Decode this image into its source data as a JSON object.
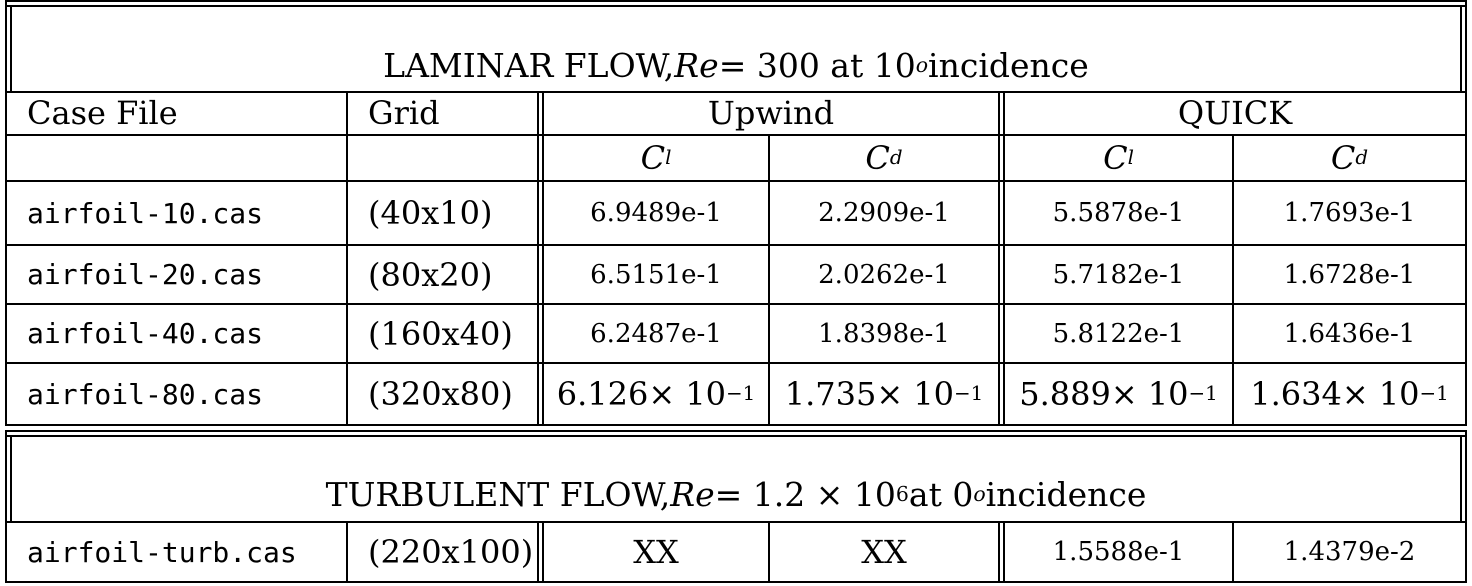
{
  "laminar": {
    "title_prefix": "LAMINAR FLOW, ",
    "re_symbol": "Re",
    "title_eq": " = 300 at 10",
    "title_sup": "o",
    "title_suffix": " incidence",
    "headers": {
      "case_file": "Case File",
      "grid": "Grid",
      "upwind": "Upwind",
      "quick": "QUICK"
    },
    "coef": {
      "cl_main": "C",
      "cl_sub": "l",
      "cd_main": "C",
      "cd_sub": "d"
    },
    "rows": [
      {
        "file": "airfoil-10.cas",
        "grid": "(40x10)",
        "up_cl": "6.9489e-1",
        "up_cd": "2.2909e-1",
        "q_cl": "5.5878e-1",
        "q_cd": "1.7693e-1"
      },
      {
        "file": "airfoil-20.cas",
        "grid": "(80x20)",
        "up_cl": "6.5151e-1",
        "up_cd": "2.0262e-1",
        "q_cl": "5.7182e-1",
        "q_cd": "1.6728e-1"
      },
      {
        "file": "airfoil-40.cas",
        "grid": "(160x40)",
        "up_cl": "6.2487e-1",
        "up_cd": "1.8398e-1",
        "q_cl": "5.8122e-1",
        "q_cd": "1.6436e-1"
      }
    ],
    "last_row": {
      "file": "airfoil-80.cas",
      "grid": "(320x80)",
      "times": " × 10",
      "exp": "−1",
      "up_cl_mant": "6.126",
      "up_cd_mant": "1.735",
      "q_cl_mant": "5.889",
      "q_cd_mant": "1.634"
    }
  },
  "turbulent": {
    "title_prefix": "TURBULENT FLOW, ",
    "re_symbol": "Re",
    "title_eq": " = 1.2 × 10",
    "title_exp": "6",
    "title_mid": " at 0",
    "title_sup": "o",
    "title_suffix": " incidence",
    "row": {
      "file": "airfoil-turb.cas",
      "grid": "(220x100)",
      "up_cl": "XX",
      "up_cd": "XX",
      "q_cl": "1.5588e-1",
      "q_cd": "1.4379e-2"
    }
  }
}
